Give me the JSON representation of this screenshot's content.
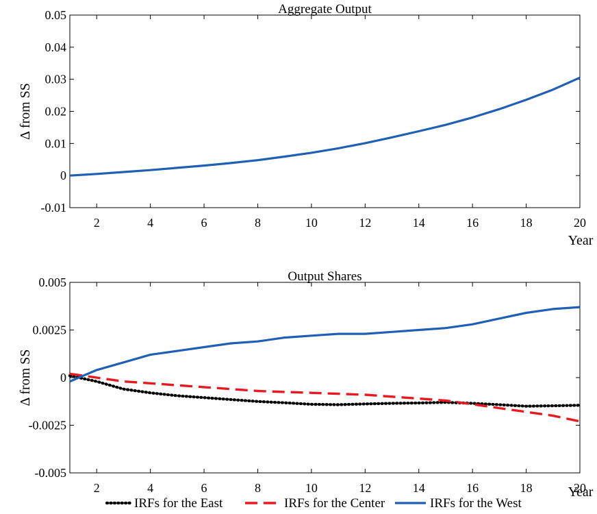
{
  "colors": {
    "east": "#000000",
    "center": "#e8191f",
    "west": "#1f5fb4",
    "frame": "#000000"
  },
  "chart_data": [
    {
      "type": "line",
      "title": "Aggregate Output",
      "xlabel": "Year",
      "ylabel": "Δ from SS",
      "xlim": [
        1,
        20
      ],
      "ylim": [
        -0.01,
        0.05
      ],
      "xticks": [
        2,
        4,
        6,
        8,
        10,
        12,
        14,
        16,
        18,
        20
      ],
      "yticks": [
        -0.01,
        0,
        0.01,
        0.02,
        0.03,
        0.04,
        0.05
      ],
      "ytick_labels": [
        "-0.01",
        "0",
        "0.01",
        "0.02",
        "0.03",
        "0.04",
        "0.05"
      ],
      "grid": false,
      "series": [
        {
          "key": "west",
          "style": "solid",
          "x": [
            1,
            2,
            3,
            4,
            5,
            6,
            7,
            8,
            9,
            10,
            11,
            12,
            13,
            14,
            15,
            16,
            17,
            18,
            19,
            20
          ],
          "values": [
            0.0,
            0.0005,
            0.0011,
            0.0017,
            0.0024,
            0.0031,
            0.0039,
            0.0048,
            0.0059,
            0.0071,
            0.0085,
            0.0101,
            0.0119,
            0.0138,
            0.0158,
            0.0181,
            0.0207,
            0.0236,
            0.0268,
            0.0305
          ]
        }
      ]
    },
    {
      "type": "line",
      "title": "Output Shares",
      "xlabel": "Year",
      "ylabel": "Δ from SS",
      "xlim": [
        1,
        20
      ],
      "ylim": [
        -0.005,
        0.005
      ],
      "xticks": [
        2,
        4,
        6,
        8,
        10,
        12,
        14,
        16,
        18,
        20
      ],
      "yticks": [
        -0.005,
        -0.0025,
        0,
        0.0025,
        0.005
      ],
      "ytick_labels": [
        "-0.005",
        "-0.0025",
        "0",
        "0.0025",
        "0.005"
      ],
      "grid": false,
      "legend_position": "bottom",
      "series": [
        {
          "key": "east",
          "name": "IRFs for the East",
          "style": "dotted",
          "x": [
            1,
            2,
            3,
            4,
            5,
            6,
            7,
            8,
            9,
            10,
            11,
            12,
            13,
            14,
            15,
            16,
            17,
            18,
            19,
            20
          ],
          "values": [
            0.0001,
            -0.0002,
            -0.0006,
            -0.0008,
            -0.00095,
            -0.00105,
            -0.00115,
            -0.00125,
            -0.00132,
            -0.0014,
            -0.00142,
            -0.00138,
            -0.00135,
            -0.00133,
            -0.0013,
            -0.00135,
            -0.00142,
            -0.0015,
            -0.00148,
            -0.00145
          ]
        },
        {
          "key": "center",
          "name": "IRFs for the Center",
          "style": "dashed",
          "x": [
            1,
            2,
            3,
            4,
            5,
            6,
            7,
            8,
            9,
            10,
            11,
            12,
            13,
            14,
            15,
            16,
            17,
            18,
            19,
            20
          ],
          "values": [
            0.0002,
            0.0,
            -0.0002,
            -0.0003,
            -0.0004,
            -0.0005,
            -0.0006,
            -0.0007,
            -0.00075,
            -0.0008,
            -0.00085,
            -0.0009,
            -0.001,
            -0.0011,
            -0.0012,
            -0.0014,
            -0.0016,
            -0.0018,
            -0.002,
            -0.0023
          ]
        },
        {
          "key": "west",
          "name": "IRFs for the West",
          "style": "solid",
          "x": [
            1,
            2,
            3,
            4,
            5,
            6,
            7,
            8,
            9,
            10,
            11,
            12,
            13,
            14,
            15,
            16,
            17,
            18,
            19,
            20
          ],
          "values": [
            -0.0002,
            0.0004,
            0.0008,
            0.0012,
            0.0014,
            0.0016,
            0.0018,
            0.0019,
            0.0021,
            0.0022,
            0.0023,
            0.0023,
            0.0024,
            0.0025,
            0.0026,
            0.0028,
            0.0031,
            0.0034,
            0.0036,
            0.0037
          ]
        }
      ]
    }
  ]
}
